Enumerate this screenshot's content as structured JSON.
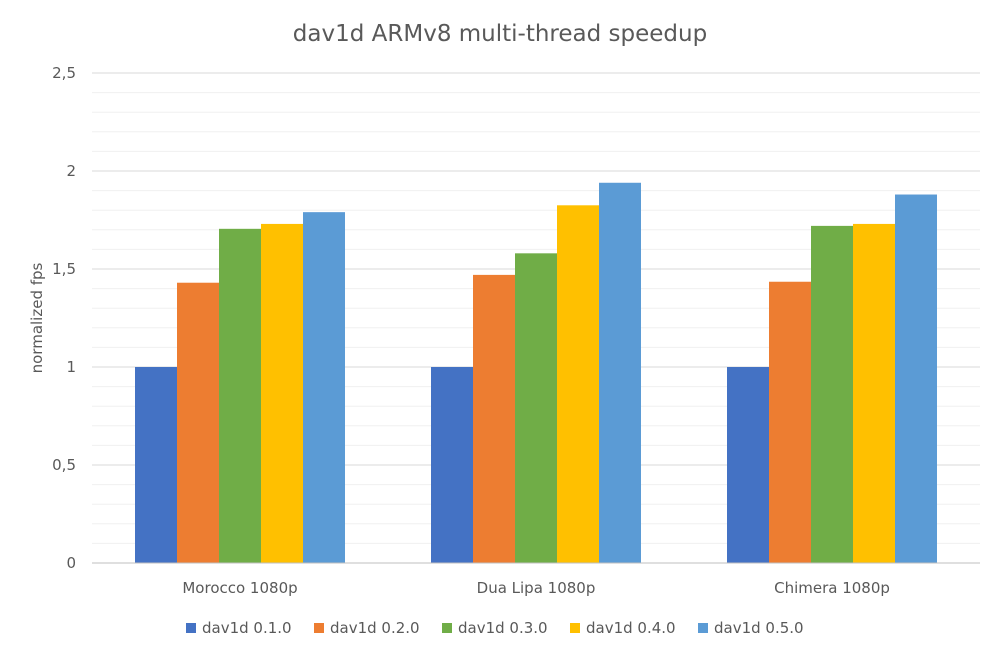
{
  "chart_data": {
    "type": "bar",
    "title": "dav1d ARMv8 multi-thread speedup",
    "xlabel": "",
    "ylabel": "normalized fps",
    "categories": [
      "Morocco 1080p",
      "Dua Lipa 1080p",
      "Chimera 1080p"
    ],
    "ylim": [
      0,
      2.5
    ],
    "yticks": [
      "0",
      "0,5",
      "1",
      "1,5",
      "2",
      "2,5"
    ],
    "ytick_values": [
      0,
      0.5,
      1,
      1.5,
      2,
      2.5
    ],
    "minor_grid_step": 0.1,
    "grid": true,
    "legend_position": "bottom",
    "series": [
      {
        "name": "dav1d 0.1.0",
        "color": "#4472C4",
        "values": [
          1.0,
          1.0,
          1.0
        ]
      },
      {
        "name": "dav1d 0.2.0",
        "color": "#ED7D31",
        "values": [
          1.43,
          1.47,
          1.435
        ]
      },
      {
        "name": "dav1d 0.3.0",
        "color": "#70AD47",
        "values": [
          1.705,
          1.58,
          1.72
        ]
      },
      {
        "name": "dav1d 0.4.0",
        "color": "#FFC000",
        "values": [
          1.73,
          1.825,
          1.73
        ]
      },
      {
        "name": "dav1d 0.5.0",
        "color": "#5B9BD5",
        "values": [
          1.79,
          1.94,
          1.88
        ]
      }
    ]
  }
}
